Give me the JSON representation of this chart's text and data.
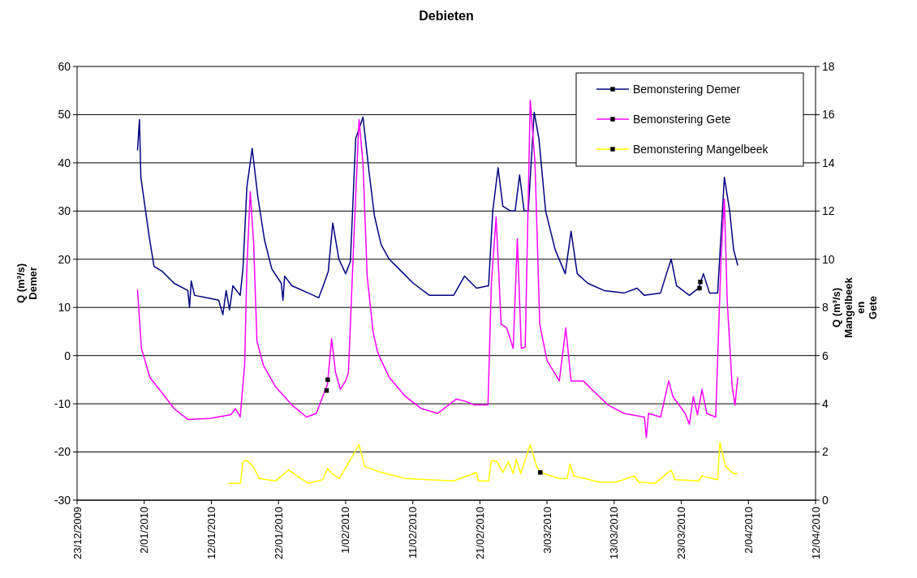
{
  "chart_data": {
    "type": "line",
    "title": "Debieten",
    "ylabel": "Q (m³/s)\nDemer",
    "y2label": "Q (m³/s)\nMangelbeek\nen\nGete",
    "xlim": [
      "2009-12-23",
      "2010-04-12"
    ],
    "xticks": [
      {
        "value": "2009-12-23",
        "label": "23/12/2009"
      },
      {
        "value": "2010-01-02",
        "label": "2/01/2010"
      },
      {
        "value": "2010-01-12",
        "label": "12/01/2010"
      },
      {
        "value": "2010-01-22",
        "label": "22/01/2010"
      },
      {
        "value": "2010-02-01",
        "label": "1/02/2010"
      },
      {
        "value": "2010-02-11",
        "label": "11/02/2010"
      },
      {
        "value": "2010-02-21",
        "label": "21/02/2010"
      },
      {
        "value": "2010-03-03",
        "label": "3/03/2010"
      },
      {
        "value": "2010-03-13",
        "label": "13/03/2010"
      },
      {
        "value": "2010-03-23",
        "label": "23/03/2010"
      },
      {
        "value": "2010-04-02",
        "label": "2/04/2010"
      },
      {
        "value": "2010-04-12",
        "label": "12/04/2010"
      }
    ],
    "ylim": [
      -30,
      60
    ],
    "yticks": [
      -30,
      -20,
      -10,
      0,
      10,
      20,
      30,
      40,
      50,
      60
    ],
    "y2lim": [
      0,
      18
    ],
    "y2ticks": [
      0,
      2,
      4,
      6,
      8,
      10,
      12,
      14,
      16,
      18
    ],
    "grid": "y",
    "legend": "top right",
    "line_style": "solid",
    "series": [
      {
        "name": "Bemonstering Demer",
        "color": "#000080",
        "x": [
          "2010-01-01",
          "2010-01-01T07:00",
          "2010-01-01T12:00",
          "2010-01-02T17:00",
          "2010-01-03T11:00",
          "2010-01-04T16:00",
          "2010-01-06T11:00",
          "2010-01-08T12:00",
          "2010-01-08T18:00",
          "2010-01-09",
          "2010-01-09T12:00",
          "2010-01-11T07:00",
          "2010-01-13T02:00",
          "2010-01-13T17:00",
          "2010-01-14T05:00",
          "2010-01-14T17:00",
          "2010-01-15T05:00",
          "2010-01-16T07:00",
          "2010-01-16T17:00",
          "2010-01-17T07:00",
          "2010-01-18T02:00",
          "2010-01-18T22:00",
          "2010-01-19T22:00",
          "2010-01-21",
          "2010-01-22T10:00",
          "2010-01-22T16:00",
          "2010-01-22T22:00",
          "2010-01-24",
          "2010-01-26T10:00",
          "2010-01-28",
          "2010-01-28T19:00",
          "2010-01-29T10:00",
          "2010-01-30T02:00",
          "2010-01-31",
          "2010-02-01",
          "2010-02-01T17:00",
          "2010-02-02T12:00",
          "2010-02-03T14:00",
          "2010-02-04T12:00",
          "2010-02-05T07:00",
          "2010-02-06T07:00",
          "2010-02-07T12:00",
          "2010-02-09T07:00",
          "2010-02-11T02:00",
          "2010-02-13T12:00",
          "2010-02-17T02:00",
          "2010-02-18T17:00",
          "2010-02-20T12:00",
          "2010-02-22T07:00",
          "2010-02-22T22:00",
          "2010-02-23T17:00",
          "2010-02-24T10:00",
          "2010-02-25T14:00",
          "2010-02-26T06:00",
          "2010-02-26T22:00",
          "2010-02-27T14:00",
          "2010-02-28T05:00",
          "2010-03-01T02:00",
          "2010-03-01T19:00",
          "2010-03-02T19:00",
          "2010-03-04T05:00",
          "2010-03-05T17:00",
          "2010-03-06T14:00",
          "2010-03-07T12:00",
          "2010-03-09T02:00",
          "2010-03-11T12:00",
          "2010-03-14T12:00",
          "2010-03-16T10:00",
          "2010-03-17T12:00",
          "2010-03-19T22:00",
          "2010-03-20T19:00",
          "2010-03-21T12:00",
          "2010-03-22T07:00",
          "2010-03-24T05:00",
          "2010-03-25T14:00",
          "2010-03-26T07:00",
          "2010-03-27T05:00",
          "2010-03-28T10:00",
          "2010-03-29T10:00",
          "2010-03-30T05:00",
          "2010-03-30T19:00",
          "2010-03-31T10:00"
        ],
        "values": [
          42.6,
          49,
          37,
          25,
          18.5,
          17.5,
          15,
          13.5,
          10,
          15.5,
          12.5,
          12,
          11.5,
          8.5,
          13.5,
          9.5,
          14.5,
          12.5,
          18,
          35,
          43,
          33,
          24,
          18,
          15,
          11.5,
          16.5,
          14.5,
          13,
          12,
          15,
          17.5,
          27.5,
          20,
          17,
          19.5,
          45,
          49.5,
          38,
          29,
          23,
          20,
          17.5,
          15,
          12.5,
          12.5,
          16.5,
          14,
          14.5,
          30,
          39,
          31,
          30,
          30,
          37.5,
          30,
          30,
          50.5,
          45,
          30,
          22,
          17,
          25.8,
          17,
          15,
          13.5,
          13,
          14,
          12.5,
          13,
          17,
          20,
          14.5,
          12.5,
          14,
          17,
          13,
          13,
          37,
          30,
          22,
          18.7
        ]
      },
      {
        "name": "Bemonstering Gete",
        "color": "#ff00ff",
        "axis": "y2",
        "x": [
          "2010-01-01",
          "2010-01-01T14:00",
          "2010-01-02T20:00",
          "2010-01-04T16:00",
          "2010-01-06T11:00",
          "2010-01-08T12:00",
          "2010-01-11T22:00",
          "2010-01-14T22:00",
          "2010-01-15T14:00",
          "2010-01-16T07:00",
          "2010-01-16T23:00",
          "2010-01-17T07:00",
          "2010-01-17T19:00",
          "2010-01-18T07:00",
          "2010-01-18T19:00",
          "2010-01-19T18:00",
          "2010-01-21T14:00",
          "2010-01-24",
          "2010-01-26T04:00",
          "2010-01-27T15:00",
          "2010-01-28T14:00",
          "2010-01-29T07:00",
          "2010-01-29T22:00",
          "2010-01-30T12:00",
          "2010-01-31T05:00",
          "2010-02-01",
          "2010-02-01T10:00",
          "2010-02-02T05:00",
          "2010-02-03",
          "2010-02-03T14:00",
          "2010-02-04T05:00",
          "2010-02-05T02:00",
          "2010-02-05T17:00",
          "2010-02-06T07:00",
          "2010-02-07T12:00",
          "2010-02-09T22:00",
          "2010-02-12T07:00",
          "2010-02-14T17:00",
          "2010-02-17T12:00",
          "2010-02-18T22:00",
          "2010-02-20T04:00",
          "2010-02-22T05:00",
          "2010-02-22T17:00",
          "2010-02-23T10:00",
          "2010-02-24T04:00",
          "2010-02-25",
          "2010-02-25T23:00",
          "2010-02-26T14:00",
          "2010-02-27T04:00",
          "2010-02-27T18:00",
          "2010-02-28T12:00",
          "2010-03-01T05:00",
          "2010-03-01T22:00",
          "2010-03-03",
          "2010-03-04T20:00",
          "2010-03-05T19:00",
          "2010-03-06T14:00",
          "2010-03-08T10:00",
          "2010-03-09T16:00",
          "2010-03-12T02:00",
          "2010-03-14T12:00",
          "2010-03-17T12:00",
          "2010-03-17T19:00",
          "2010-03-18T03:00",
          "2010-03-19T22:00",
          "2010-03-21T03:00",
          "2010-03-21T18:00",
          "2010-03-23T14:00",
          "2010-03-24T05:00",
          "2010-03-24T19:00",
          "2010-03-25T10:00",
          "2010-03-26T02:00",
          "2010-03-26T19:00",
          "2010-03-28T03:00",
          "2010-03-28T22:00",
          "2010-03-29T10:00",
          "2010-03-29T20:00",
          "2010-03-30T14:00",
          "2010-03-31",
          "2010-03-31T10:00"
        ],
        "values": [
          8.75,
          6.3,
          5.1,
          4.45,
          3.8,
          3.35,
          3.4,
          3.55,
          3.8,
          3.45,
          5.6,
          9.65,
          12.8,
          10.7,
          6.6,
          5.6,
          4.7,
          3.95,
          3.45,
          3.6,
          4.3,
          4.8,
          6.7,
          5.3,
          4.6,
          4.95,
          5.3,
          10.7,
          15.8,
          14,
          9.3,
          7,
          6.2,
          5.8,
          5.1,
          4.3,
          3.8,
          3.6,
          4.2,
          4.1,
          3.95,
          3.95,
          9,
          11.75,
          7.3,
          7.15,
          6.3,
          10.85,
          6.3,
          6.35,
          16.6,
          14,
          7.3,
          5.8,
          4.95,
          7.15,
          4.95,
          4.95,
          4.6,
          3.95,
          3.6,
          3.45,
          2.6,
          3.6,
          3.45,
          4.95,
          4.3,
          3.6,
          3.15,
          4.3,
          3.55,
          4.6,
          3.6,
          3.45,
          10,
          12.5,
          8.3,
          4.7,
          3.95,
          5.1
        ]
      },
      {
        "name": "Bemonstering Mangelbeek",
        "color": "#ffff00",
        "axis": "y2",
        "x": [
          "2010-01-14T14:00",
          "2010-01-16T08:00",
          "2010-01-16T17:00",
          "2010-01-17T07:00",
          "2010-01-18T05:00",
          "2010-01-19T03:00",
          "2010-01-21T14:00",
          "2010-01-23T12:00",
          "2010-01-26T10:00",
          "2010-01-28T14:00",
          "2010-01-29T07:00",
          "2010-01-30",
          "2010-01-31T02:00",
          "2010-01-31T14:00",
          "2010-02-03",
          "2010-02-03T20:00",
          "2010-02-06T07:00",
          "2010-02-09T22:00",
          "2010-02-17T02:00",
          "2010-02-20T12:00",
          "2010-02-20T19:00",
          "2010-02-22T07:00",
          "2010-02-22T17:00",
          "2010-02-23T13:00",
          "2010-02-24T10:00",
          "2010-02-25T06:00",
          "2010-02-25T23:00",
          "2010-02-26T10:00",
          "2010-02-27T02:00",
          "2010-02-28T12:00",
          "2010-03-01T11:00",
          "2010-03-02",
          "2010-03-04T20:00",
          "2010-03-06",
          "2010-03-06T10:00",
          "2010-03-07",
          "2010-03-10T21:00",
          "2010-03-13T07:00",
          "2010-03-16",
          "2010-03-16T16:00",
          "2010-03-19T02:00",
          "2010-03-21T12:00",
          "2010-03-22T02:00",
          "2010-03-25T14:00",
          "2010-03-26T02:00",
          "2010-03-28T10:00",
          "2010-03-28T18:00",
          "2010-03-29T14:00",
          "2010-03-30T19:00",
          "2010-03-31T10:00"
        ],
        "values": [
          0.7,
          0.7,
          1.6,
          1.65,
          1.4,
          0.9,
          0.8,
          1.25,
          0.7,
          0.85,
          1.3,
          1.1,
          0.9,
          1.15,
          2.3,
          1.4,
          1.15,
          0.9,
          0.8,
          1.15,
          0.8,
          0.8,
          1.65,
          1.6,
          1.15,
          1.6,
          1.1,
          1.7,
          1.1,
          2.3,
          1.4,
          1.15,
          0.9,
          0.9,
          1.5,
          1,
          0.75,
          0.75,
          1,
          0.75,
          0.7,
          1.25,
          0.85,
          0.8,
          1,
          0.85,
          2.4,
          1.4,
          1.1,
          1.1
        ]
      },
      {
        "type": "scatter",
        "color": "#000000",
        "marker": "square",
        "x": [
          "2010-03-25T17:00",
          "2010-03-25T20:00"
        ],
        "values": [
          14,
          15.3
        ]
      },
      {
        "type": "scatter",
        "color": "#000000",
        "marker": "square",
        "axis": "y2",
        "x": [
          "2010-01-29T04:00",
          "2010-01-29T08:00"
        ],
        "values": [
          4.55,
          5
        ]
      },
      {
        "type": "scatter",
        "color": "#000000",
        "marker": "square",
        "axis": "y2",
        "x": [
          "2010-03-02"
        ],
        "values": [
          1.15
        ]
      }
    ]
  }
}
